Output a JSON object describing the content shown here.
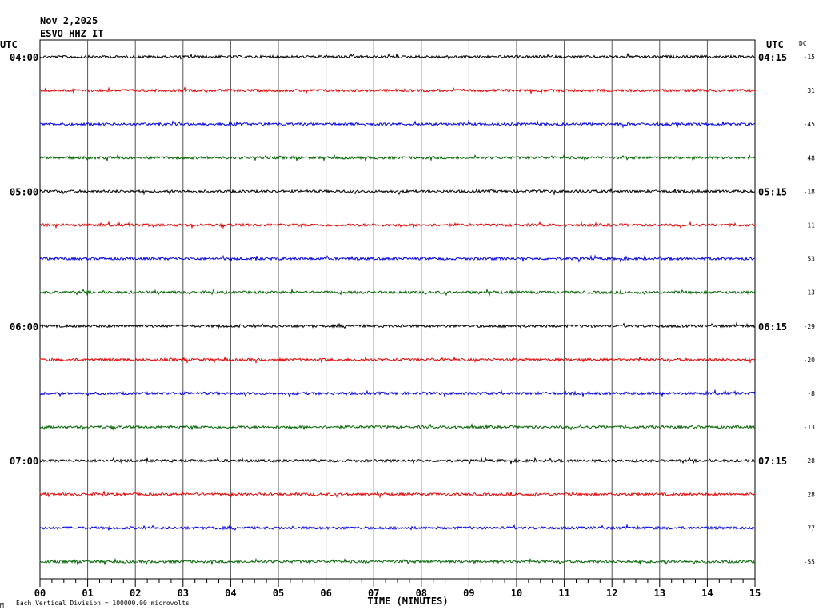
{
  "header": {
    "date": "Nov 2,2025",
    "station": "ESVO HHZ IT"
  },
  "left_axis_title": "UTC",
  "right_axis_title": "UTC",
  "dc_title": "DC",
  "footer": {
    "scale_note": "Each Vertical Division = 100000.00 microvolts",
    "corner_mark": "M"
  },
  "chart_data": {
    "type": "line",
    "title": "ESVO HHZ IT",
    "xlabel": "TIME (MINUTES)",
    "xlim": [
      0,
      15
    ],
    "x_ticks": [
      "00",
      "01",
      "02",
      "03",
      "04",
      "05",
      "06",
      "07",
      "08",
      "09",
      "10",
      "11",
      "12",
      "13",
      "14",
      "15"
    ],
    "trace_colors": [
      "#000000",
      "#e00000",
      "#0000e0",
      "#006400"
    ],
    "left_hour_labels": [
      "04:00",
      "05:00",
      "06:00",
      "07:00"
    ],
    "right_hour_labels": [
      "04:15",
      "05:15",
      "06:15",
      "07:15"
    ],
    "dc_offsets": [
      -15,
      31,
      -45,
      48,
      -18,
      11,
      53,
      -13,
      -29,
      -20,
      -8,
      -13,
      -28,
      28,
      77,
      -55
    ],
    "series_count": 16,
    "grid": true
  }
}
